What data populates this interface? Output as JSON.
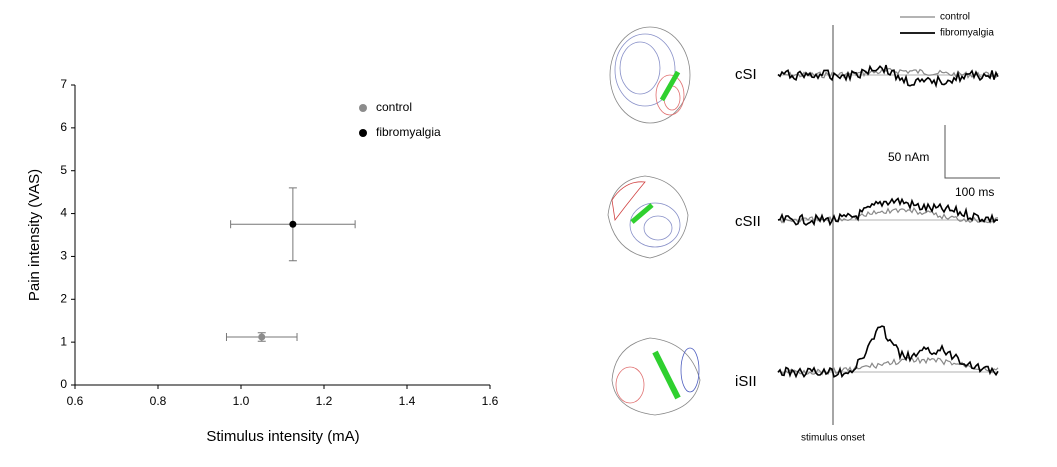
{
  "chart_data": {
    "type": "scatter",
    "x_label": "Stimulus intensity (mA)",
    "y_label": "Pain intensity (VAS)",
    "xlim": [
      0.6,
      1.6
    ],
    "xticks": [
      0.6,
      0.8,
      {
        "value": 1,
        "label": "1.0"
      },
      1.2,
      1.4,
      1.6
    ],
    "ylim": [
      0,
      7
    ],
    "yticks": [
      0,
      1,
      2,
      3,
      4,
      5,
      6,
      7
    ],
    "legend": "upper right",
    "series": [
      {
        "name": "control",
        "color": "#8c8c8c",
        "x": [
          1.05
        ],
        "values": [
          1.12
        ],
        "xerr": [
          0.085
        ],
        "yerr": [
          0.1
        ]
      },
      {
        "name": "fibromyalgia",
        "color": "#000000",
        "x": [
          1.125
        ],
        "values": [
          3.75
        ],
        "xerr": [
          0.15
        ],
        "yerr": [
          0.85
        ]
      }
    ]
  },
  "meg_panel": {
    "legend": [
      "control",
      "fibromyalgia"
    ],
    "regions": [
      "cSI",
      "cSII",
      "iSII"
    ],
    "scale_amplitude": "50 nAm",
    "scale_time": "100 ms",
    "onset_label": "stimulus onset"
  }
}
